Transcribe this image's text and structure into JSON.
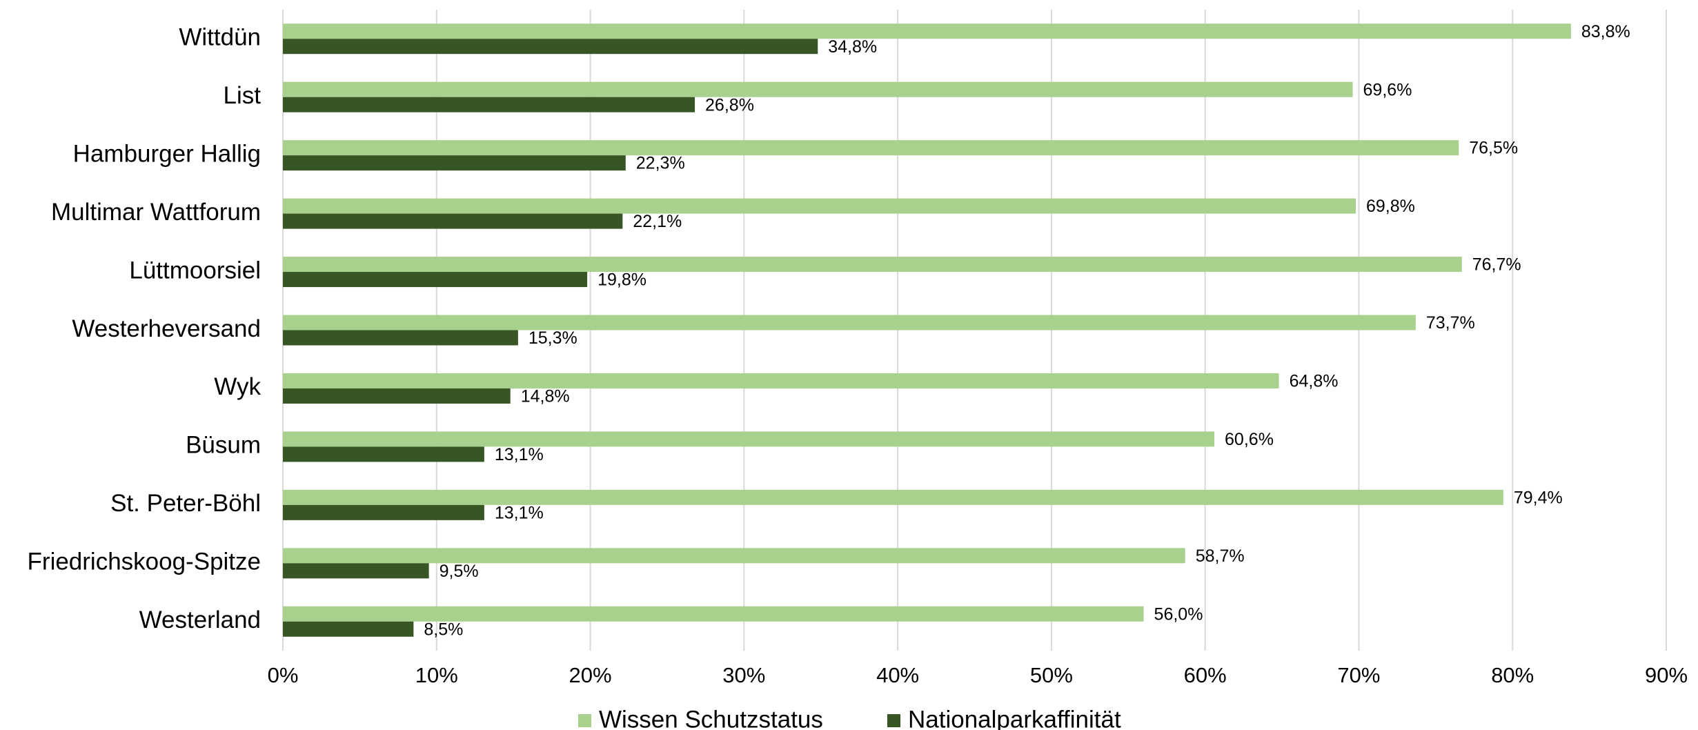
{
  "chart_data": {
    "type": "bar",
    "orientation": "horizontal",
    "categories": [
      "Wittdün",
      "List",
      "Hamburger Hallig",
      "Multimar Wattforum",
      "Lüttmoorsiel",
      "Westerheversand",
      "Wyk",
      "Büsum",
      "St. Peter-Böhl",
      "Friedrichskoog-Spitze",
      "Westerland"
    ],
    "series": [
      {
        "name": "Wissen Schutzstatus",
        "color": "#a9d18e",
        "values": [
          83.8,
          69.6,
          76.5,
          69.8,
          76.7,
          73.7,
          64.8,
          60.6,
          79.4,
          58.7,
          56.0
        ],
        "value_labels": [
          "83,8%",
          "69,6%",
          "76,5%",
          "69,8%",
          "76,7%",
          "73,7%",
          "64,8%",
          "60,6%",
          "79,4%",
          "58,7%",
          "56,0%"
        ]
      },
      {
        "name": "Nationalparkaffinität",
        "color": "#375623",
        "values": [
          34.8,
          26.8,
          22.3,
          22.1,
          19.8,
          15.3,
          14.8,
          13.1,
          13.1,
          9.5,
          8.5
        ],
        "value_labels": [
          "34,8%",
          "26,8%",
          "22,3%",
          "22,1%",
          "19,8%",
          "15,3%",
          "14,8%",
          "13,1%",
          "13,1%",
          "9,5%",
          "8,5%"
        ]
      }
    ],
    "xlim": [
      0,
      90
    ],
    "xticks": [
      {
        "value": 0,
        "label": "0%"
      },
      {
        "value": 10,
        "label": "10%"
      },
      {
        "value": 20,
        "label": "20%"
      },
      {
        "value": 30,
        "label": "30%"
      },
      {
        "value": 40,
        "label": "40%"
      },
      {
        "value": 50,
        "label": "50%"
      },
      {
        "value": 60,
        "label": "60%"
      },
      {
        "value": 70,
        "label": "70%"
      },
      {
        "value": 80,
        "label": "80%"
      },
      {
        "value": 90,
        "label": "90%"
      }
    ],
    "grid": true,
    "legend": "bottom"
  }
}
